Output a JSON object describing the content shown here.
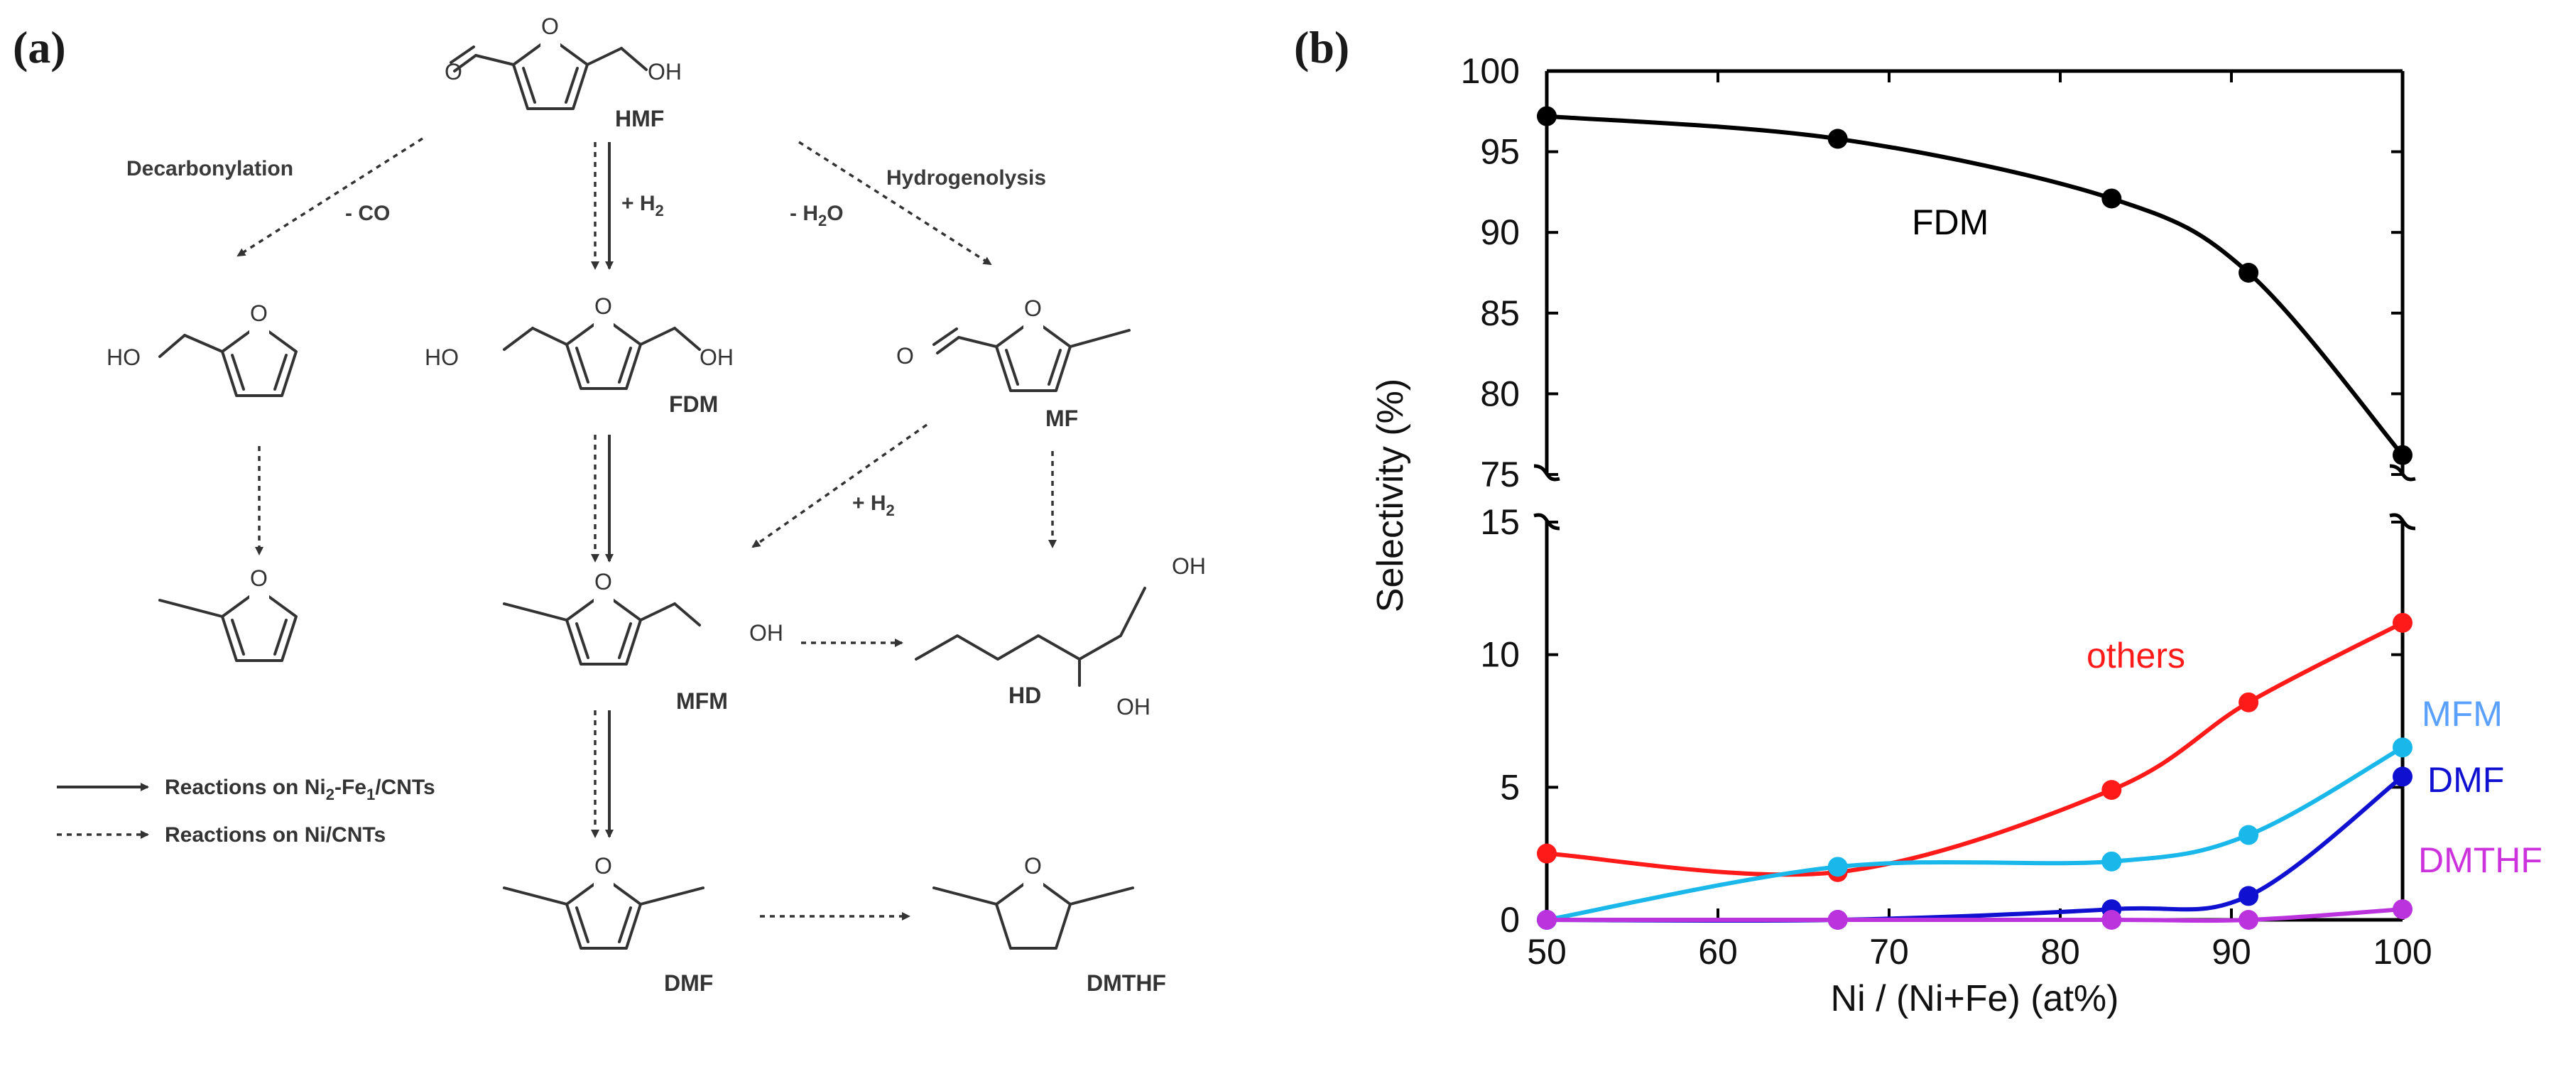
{
  "panel_a": {
    "label": "(a)",
    "reactions": {
      "decarbonylation": "Decarbonylation",
      "minus_co": "- CO",
      "plus_h2_top": "+ H",
      "plus_h2_top_sub": "2",
      "hydrogenolysis": "Hydrogenolysis",
      "minus_h2o_pre": "- H",
      "minus_h2o_sub": "2",
      "minus_h2o_post": "O",
      "plus_h2_mid": "+ H",
      "plus_h2_mid_sub": "2"
    },
    "atoms": {
      "o": "O",
      "oh": "OH",
      "ho": "HO"
    },
    "compounds": {
      "hmf": "HMF",
      "fdm": "FDM",
      "mf": "MF",
      "mfm": "MFM",
      "hd": "HD",
      "dmf": "DMF",
      "dmthf": "DMTHF"
    },
    "legend": {
      "solid_pre": "Reactions on Ni",
      "solid_sub1": "2",
      "solid_mid": "-Fe",
      "solid_sub2": "1",
      "solid_post": "/CNTs",
      "dotted": "Reactions on Ni/CNTs"
    }
  },
  "panel_b": {
    "label": "(b)"
  },
  "chart_data": {
    "type": "line",
    "title": "",
    "xlabel": "Ni / (Ni+Fe) (at%)",
    "ylabel": "Selectivity (%)",
    "xlim": [
      50,
      100
    ],
    "x_ticks": [
      "50",
      "60",
      "70",
      "80",
      "90",
      "100"
    ],
    "y_ticks_upper": [
      "75",
      "80",
      "85",
      "90",
      "95",
      "100"
    ],
    "y_ticks_lower": [
      "0",
      "5",
      "10",
      "15"
    ],
    "axis_break": {
      "lower_range": [
        0,
        15
      ],
      "upper_range": [
        75,
        100
      ]
    },
    "x": [
      50,
      67,
      83,
      91,
      100
    ],
    "grid": false,
    "series": [
      {
        "name": "FDM",
        "color": "#000000",
        "values": [
          97.2,
          95.8,
          92.1,
          87.5,
          76.2
        ]
      },
      {
        "name": "others",
        "color": "#ff1a1a",
        "values": [
          2.5,
          1.8,
          4.9,
          8.2,
          11.2
        ]
      },
      {
        "name": "MFM",
        "color": "#1ab8ea",
        "values": [
          0.0,
          2.0,
          2.2,
          3.2,
          6.5
        ]
      },
      {
        "name": "DMF",
        "color": "#1010d0",
        "values": [
          0.0,
          0.0,
          0.4,
          0.9,
          5.4
        ]
      },
      {
        "name": "DMTHF",
        "color": "#bb33dd",
        "values": [
          0.0,
          0.0,
          0.0,
          0.0,
          0.4
        ]
      }
    ],
    "series_label_colors": {
      "FDM": "#000000",
      "others": "#ff1a1a",
      "MFM": "#5aa0ff",
      "DMF": "#1010d0",
      "DMTHF": "#cc33dd"
    }
  }
}
